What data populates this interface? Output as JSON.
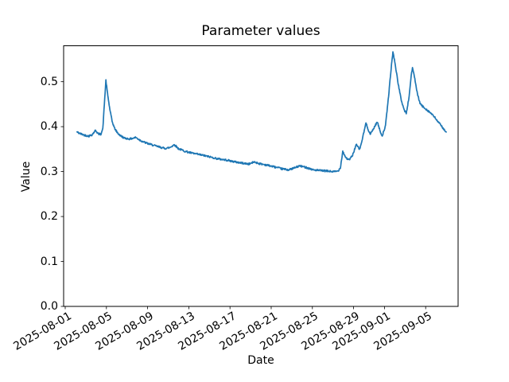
{
  "chart_data": {
    "type": "line",
    "title": "Parameter values",
    "xlabel": "Date",
    "ylabel": "Value",
    "grid": false,
    "legend": "none",
    "background": "#ffffff",
    "frame_color": "#000000",
    "x_axis": {
      "unit": "days since 2025-08-01",
      "lim": [
        -0.155,
        38.15
      ],
      "tick_rotation_deg": 30,
      "ticks": [
        {
          "pos": 0,
          "label": "2025-08-01"
        },
        {
          "pos": 4,
          "label": "2025-08-05"
        },
        {
          "pos": 8,
          "label": "2025-08-09"
        },
        {
          "pos": 12,
          "label": "2025-08-13"
        },
        {
          "pos": 16,
          "label": "2025-08-17"
        },
        {
          "pos": 20,
          "label": "2025-08-21"
        },
        {
          "pos": 24,
          "label": "2025-08-25"
        },
        {
          "pos": 28,
          "label": "2025-08-29"
        },
        {
          "pos": 31,
          "label": "2025-09-01"
        },
        {
          "pos": 35,
          "label": "2025-09-05"
        }
      ]
    },
    "y_axis": {
      "lim": [
        0,
        0.58
      ],
      "ticks": [
        {
          "pos": 0.0,
          "label": "0.0"
        },
        {
          "pos": 0.1,
          "label": "0.1"
        },
        {
          "pos": 0.2,
          "label": "0.2"
        },
        {
          "pos": 0.3,
          "label": "0.3"
        },
        {
          "pos": 0.4,
          "label": "0.4"
        },
        {
          "pos": 0.5,
          "label": "0.5"
        }
      ]
    },
    "series": [
      {
        "name": "parameter-values",
        "color": "#1f77b4",
        "noise_band": 0.002,
        "points": [
          [
            1.15,
            0.388
          ],
          [
            1.5,
            0.384
          ],
          [
            1.9,
            0.381
          ],
          [
            2.3,
            0.379
          ],
          [
            2.6,
            0.382
          ],
          [
            2.95,
            0.392
          ],
          [
            3.2,
            0.384
          ],
          [
            3.45,
            0.383
          ],
          [
            3.65,
            0.395
          ],
          [
            3.8,
            0.45
          ],
          [
            3.95,
            0.503
          ],
          [
            4.1,
            0.475
          ],
          [
            4.3,
            0.443
          ],
          [
            4.55,
            0.412
          ],
          [
            4.8,
            0.396
          ],
          [
            5.05,
            0.387
          ],
          [
            5.35,
            0.38
          ],
          [
            5.75,
            0.3745
          ],
          [
            6.3,
            0.3725
          ],
          [
            6.85,
            0.376
          ],
          [
            7.25,
            0.37
          ],
          [
            7.75,
            0.3645
          ],
          [
            8.35,
            0.36
          ],
          [
            9.0,
            0.3555
          ],
          [
            9.7,
            0.3515
          ],
          [
            10.15,
            0.3535
          ],
          [
            10.6,
            0.36
          ],
          [
            11.0,
            0.351
          ],
          [
            11.6,
            0.3455
          ],
          [
            12.3,
            0.341
          ],
          [
            13.1,
            0.3375
          ],
          [
            13.9,
            0.3335
          ],
          [
            14.8,
            0.3285
          ],
          [
            15.7,
            0.3255
          ],
          [
            16.5,
            0.3215
          ],
          [
            17.3,
            0.3185
          ],
          [
            17.85,
            0.3168
          ],
          [
            18.35,
            0.3215
          ],
          [
            18.9,
            0.3175
          ],
          [
            19.6,
            0.3145
          ],
          [
            20.3,
            0.3105
          ],
          [
            21.0,
            0.3063
          ],
          [
            21.7,
            0.3038
          ],
          [
            22.3,
            0.3085
          ],
          [
            22.75,
            0.3127
          ],
          [
            23.4,
            0.3093
          ],
          [
            24.1,
            0.3038
          ],
          [
            24.8,
            0.3022
          ],
          [
            25.5,
            0.301
          ],
          [
            26.1,
            0.2997
          ],
          [
            26.5,
            0.3012
          ],
          [
            26.72,
            0.309
          ],
          [
            26.95,
            0.345
          ],
          [
            27.25,
            0.331
          ],
          [
            27.55,
            0.3255
          ],
          [
            27.9,
            0.336
          ],
          [
            28.25,
            0.36
          ],
          [
            28.6,
            0.3495
          ],
          [
            28.85,
            0.372
          ],
          [
            29.2,
            0.408
          ],
          [
            29.45,
            0.392
          ],
          [
            29.62,
            0.383
          ],
          [
            29.95,
            0.396
          ],
          [
            30.3,
            0.411
          ],
          [
            30.55,
            0.392
          ],
          [
            30.78,
            0.379
          ],
          [
            31.1,
            0.402
          ],
          [
            31.4,
            0.468
          ],
          [
            31.65,
            0.53
          ],
          [
            31.82,
            0.566
          ],
          [
            32.0,
            0.545
          ],
          [
            32.3,
            0.5
          ],
          [
            32.6,
            0.462
          ],
          [
            32.9,
            0.438
          ],
          [
            33.12,
            0.429
          ],
          [
            33.4,
            0.468
          ],
          [
            33.6,
            0.515
          ],
          [
            33.72,
            0.531
          ],
          [
            33.95,
            0.506
          ],
          [
            34.2,
            0.472
          ],
          [
            34.45,
            0.452
          ],
          [
            34.7,
            0.445
          ],
          [
            35.1,
            0.438
          ],
          [
            35.5,
            0.43
          ],
          [
            35.9,
            0.42
          ],
          [
            36.3,
            0.408
          ],
          [
            36.65,
            0.398
          ],
          [
            37.0,
            0.388
          ]
        ]
      }
    ]
  }
}
